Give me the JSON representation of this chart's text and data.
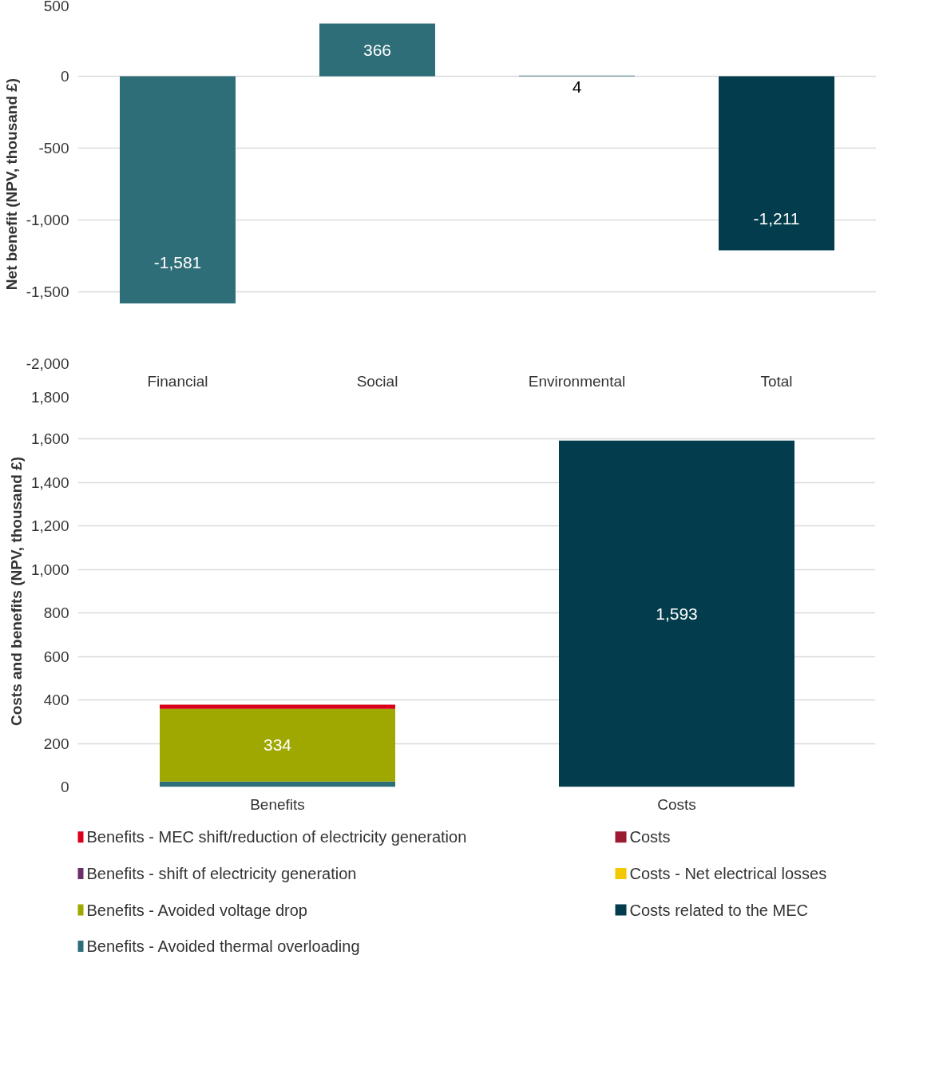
{
  "chart_data": [
    {
      "type": "bar",
      "ylabel": "Net benefit (NPV, thousand £)",
      "categories": [
        "Financial",
        "Social",
        "Environmental",
        "Total"
      ],
      "values": [
        -1581,
        366,
        4,
        -1211
      ],
      "colors": [
        "#2e6e78",
        "#2e6e78",
        "#2e6e78",
        "#033d4d"
      ],
      "value_labels": [
        "-1,581",
        "366",
        "4",
        "-1,211"
      ],
      "ylim": [
        -2000,
        500
      ],
      "yticks": [
        {
          "value": -2000,
          "label": "-2,000"
        },
        {
          "value": -1500,
          "label": "-1,500"
        },
        {
          "value": -1000,
          "label": "-1,000"
        },
        -500,
        0,
        500
      ],
      "grid": "y"
    },
    {
      "type": "bar",
      "stacked": true,
      "ylabel": "Costs and benefits (NPV, thousand £)",
      "categories": [
        "Benefits",
        "Costs"
      ],
      "ylim": [
        0,
        1800
      ],
      "yticks": [
        0,
        200,
        400,
        600,
        800,
        {
          "value": 1000,
          "label": "1,000"
        },
        {
          "value": 1200,
          "label": "1,200"
        },
        {
          "value": 1400,
          "label": "1,400"
        },
        {
          "value": 1600,
          "label": "1,600"
        },
        {
          "value": 1800,
          "label": "1,800"
        }
      ],
      "grid": "y",
      "legend": "bottom",
      "series": [
        {
          "name": "Benefits - Avoided thermal overloading",
          "color": "#2e6e78",
          "values": [
            25,
            null
          ]
        },
        {
          "name": "Benefits - Avoided voltage drop",
          "color": "#9fa800",
          "values": [
            334,
            null
          ],
          "value_labels": [
            "334",
            null
          ]
        },
        {
          "name": "Benefits - shift of electricity generation",
          "color": "#6b2f6b",
          "values": [
            0,
            null
          ]
        },
        {
          "name": "Benefits - MEC shift/reduction of electricity generation",
          "color": "#d9001b",
          "values": [
            19,
            null
          ]
        },
        {
          "name": "Costs related to the MEC",
          "color": "#033d4d",
          "values": [
            null,
            1593
          ],
          "value_labels": [
            null,
            "1,593"
          ]
        },
        {
          "name": "Costs - Net electrical losses",
          "color": "#f2c800",
          "values": [
            null,
            0
          ]
        },
        {
          "name": "Costs",
          "color": "#9b1b30",
          "values": [
            null,
            0
          ]
        }
      ]
    }
  ]
}
